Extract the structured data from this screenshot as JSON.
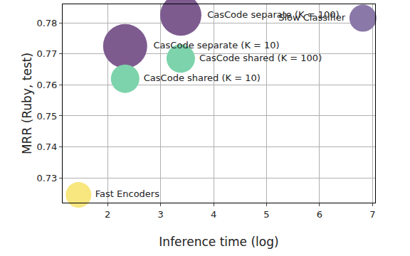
{
  "chart_data": {
    "type": "bubble",
    "x_label": "Inference time (log)",
    "y_label": "MRR (Ruby, test)",
    "labels": [
      "Fast Encoders",
      "CasCode separate (K = 10)",
      "CasCode shared (K = 10)",
      "CasCode separate (K = 100)",
      "CasCode shared (K = 100)",
      "Slow Classifier"
    ],
    "x": [
      1.45,
      2.33,
      2.33,
      3.38,
      3.38,
      6.82
    ],
    "values": [
      0.7245,
      0.7725,
      0.762,
      0.7825,
      0.7685,
      0.7815
    ],
    "sizes": [
      36,
      62,
      40,
      58,
      40,
      38
    ],
    "colors": [
      "#f8e67f",
      "#7d5b8f",
      "#7dd3ab",
      "#7d5b8f",
      "#7dd3ab",
      "#8a78a8"
    ],
    "xlim": [
      1.15,
      7.05
    ],
    "xticks": [
      2,
      3,
      4,
      5,
      6,
      7
    ],
    "ylim": [
      0.722,
      0.786
    ],
    "yticks": [
      0.73,
      0.74,
      0.75,
      0.76,
      0.77,
      0.78
    ],
    "grid": true,
    "data_labels": true
  }
}
